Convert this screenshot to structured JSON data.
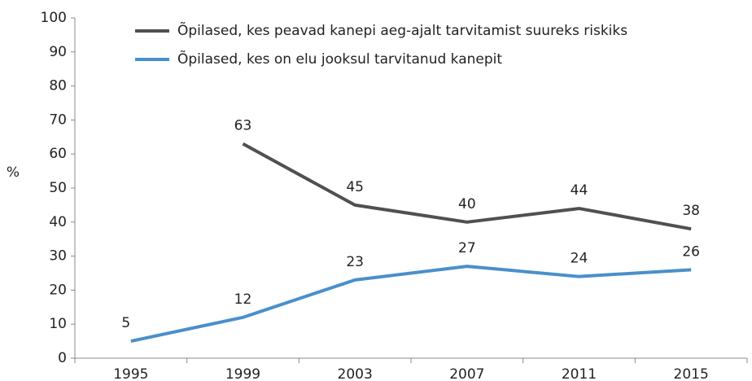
{
  "chart_data": {
    "type": "line",
    "categories": [
      "1995",
      "1999",
      "2003",
      "2007",
      "2011",
      "2015"
    ],
    "series": [
      {
        "name": "Õpilased, kes peavad kanepi aeg-ajalt tarvitamist suureks riskiks",
        "color": "#505050",
        "values": [
          null,
          63,
          45,
          40,
          44,
          38
        ]
      },
      {
        "name": "Õpilased, kes on elu jooksul tarvitanud kanepit",
        "color": "#4a8fcb",
        "values": [
          5,
          12,
          23,
          27,
          24,
          26
        ]
      }
    ],
    "ylabel": "%",
    "ylim": [
      0,
      100
    ],
    "yticks": [
      0,
      10,
      20,
      30,
      40,
      50,
      60,
      70,
      80,
      90,
      100
    ],
    "grid": false,
    "legend": "top"
  }
}
